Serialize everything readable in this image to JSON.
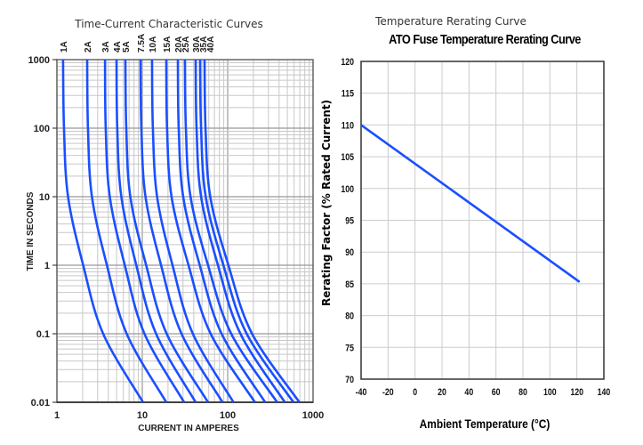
{
  "chart_data": [
    {
      "type": "line",
      "title": "Time-Current Characteristic Curves",
      "xlabel": "CURRENT IN AMPERES",
      "ylabel": "TIME IN SECONDS",
      "x_scale": "log",
      "y_scale": "log",
      "xlim": [
        1,
        1000
      ],
      "ylim": [
        0.01,
        1000
      ],
      "x_ticks": [
        "1",
        "10",
        "100",
        "1000"
      ],
      "y_ticks": [
        "1000",
        "100",
        "10",
        "1",
        "0.1",
        "0.01"
      ],
      "grid": true,
      "line_color": "#1a4fff",
      "time_points": [
        1000,
        100,
        10,
        1,
        0.1,
        0.01
      ],
      "series": [
        {
          "name": "1A",
          "current": [
            1.18,
            1.21,
            1.35,
            2.03,
            3.48,
            10.2
          ]
        },
        {
          "name": "2A",
          "current": [
            2.26,
            2.31,
            2.57,
            3.85,
            6.56,
            19.1
          ]
        },
        {
          "name": "3A",
          "current": [
            3.66,
            3.73,
            4.16,
            6.24,
            10.6,
            30.9
          ]
        },
        {
          "name": "4A",
          "current": [
            4.99,
            5.09,
            5.68,
            8.51,
            14.5,
            42.2
          ]
        },
        {
          "name": "5A",
          "current": [
            6.34,
            6.49,
            7.24,
            11.1,
            19.3,
            58.9
          ]
        },
        {
          "name": "7.5A",
          "current": [
            9.53,
            9.75,
            10.9,
            16.6,
            28.8,
            87.1
          ]
        },
        {
          "name": "10A",
          "current": [
            13.0,
            13.3,
            14.9,
            22.6,
            39.1,
            117
          ]
        },
        {
          "name": "15A",
          "current": [
            19.1,
            19.5,
            22.0,
            34.8,
            63.2,
            209
          ]
        },
        {
          "name": "20A",
          "current": [
            26.1,
            26.7,
            30.1,
            47.1,
            84.9,
            275
          ]
        },
        {
          "name": "25A",
          "current": [
            31.6,
            32.4,
            36.7,
            58.9,
            110,
            380
          ]
        },
        {
          "name": "30A",
          "current": [
            42.2,
            43.2,
            48.8,
            76.9,
            141,
            468
          ]
        },
        {
          "name": "35A",
          "current": [
            47.5,
            48.8,
            55.3,
            89.1,
            167,
            589
          ]
        },
        {
          "name": "40A",
          "current": [
            53.6,
            55.0,
            62.5,
            102,
            193,
            692
          ]
        }
      ]
    },
    {
      "type": "line",
      "heading": "Temperature Rerating Curve",
      "title": "ATO Fuse Temperature Rerating Curve",
      "xlabel": "Ambient Temperature (°C)",
      "ylabel": "Rerating Factor (% Rated Current)",
      "xlim": [
        -40,
        140
      ],
      "ylim": [
        70,
        120
      ],
      "x_ticks": [
        "-40",
        "-20",
        "0",
        "20",
        "40",
        "60",
        "80",
        "100",
        "120",
        "140"
      ],
      "y_ticks": [
        "120",
        "115",
        "110",
        "105",
        "100",
        "95",
        "90",
        "85",
        "80",
        "75",
        "70"
      ],
      "grid": true,
      "line_color": "#1a4fff",
      "x": [
        -40,
        122
      ],
      "y": [
        110,
        85.3
      ]
    }
  ]
}
